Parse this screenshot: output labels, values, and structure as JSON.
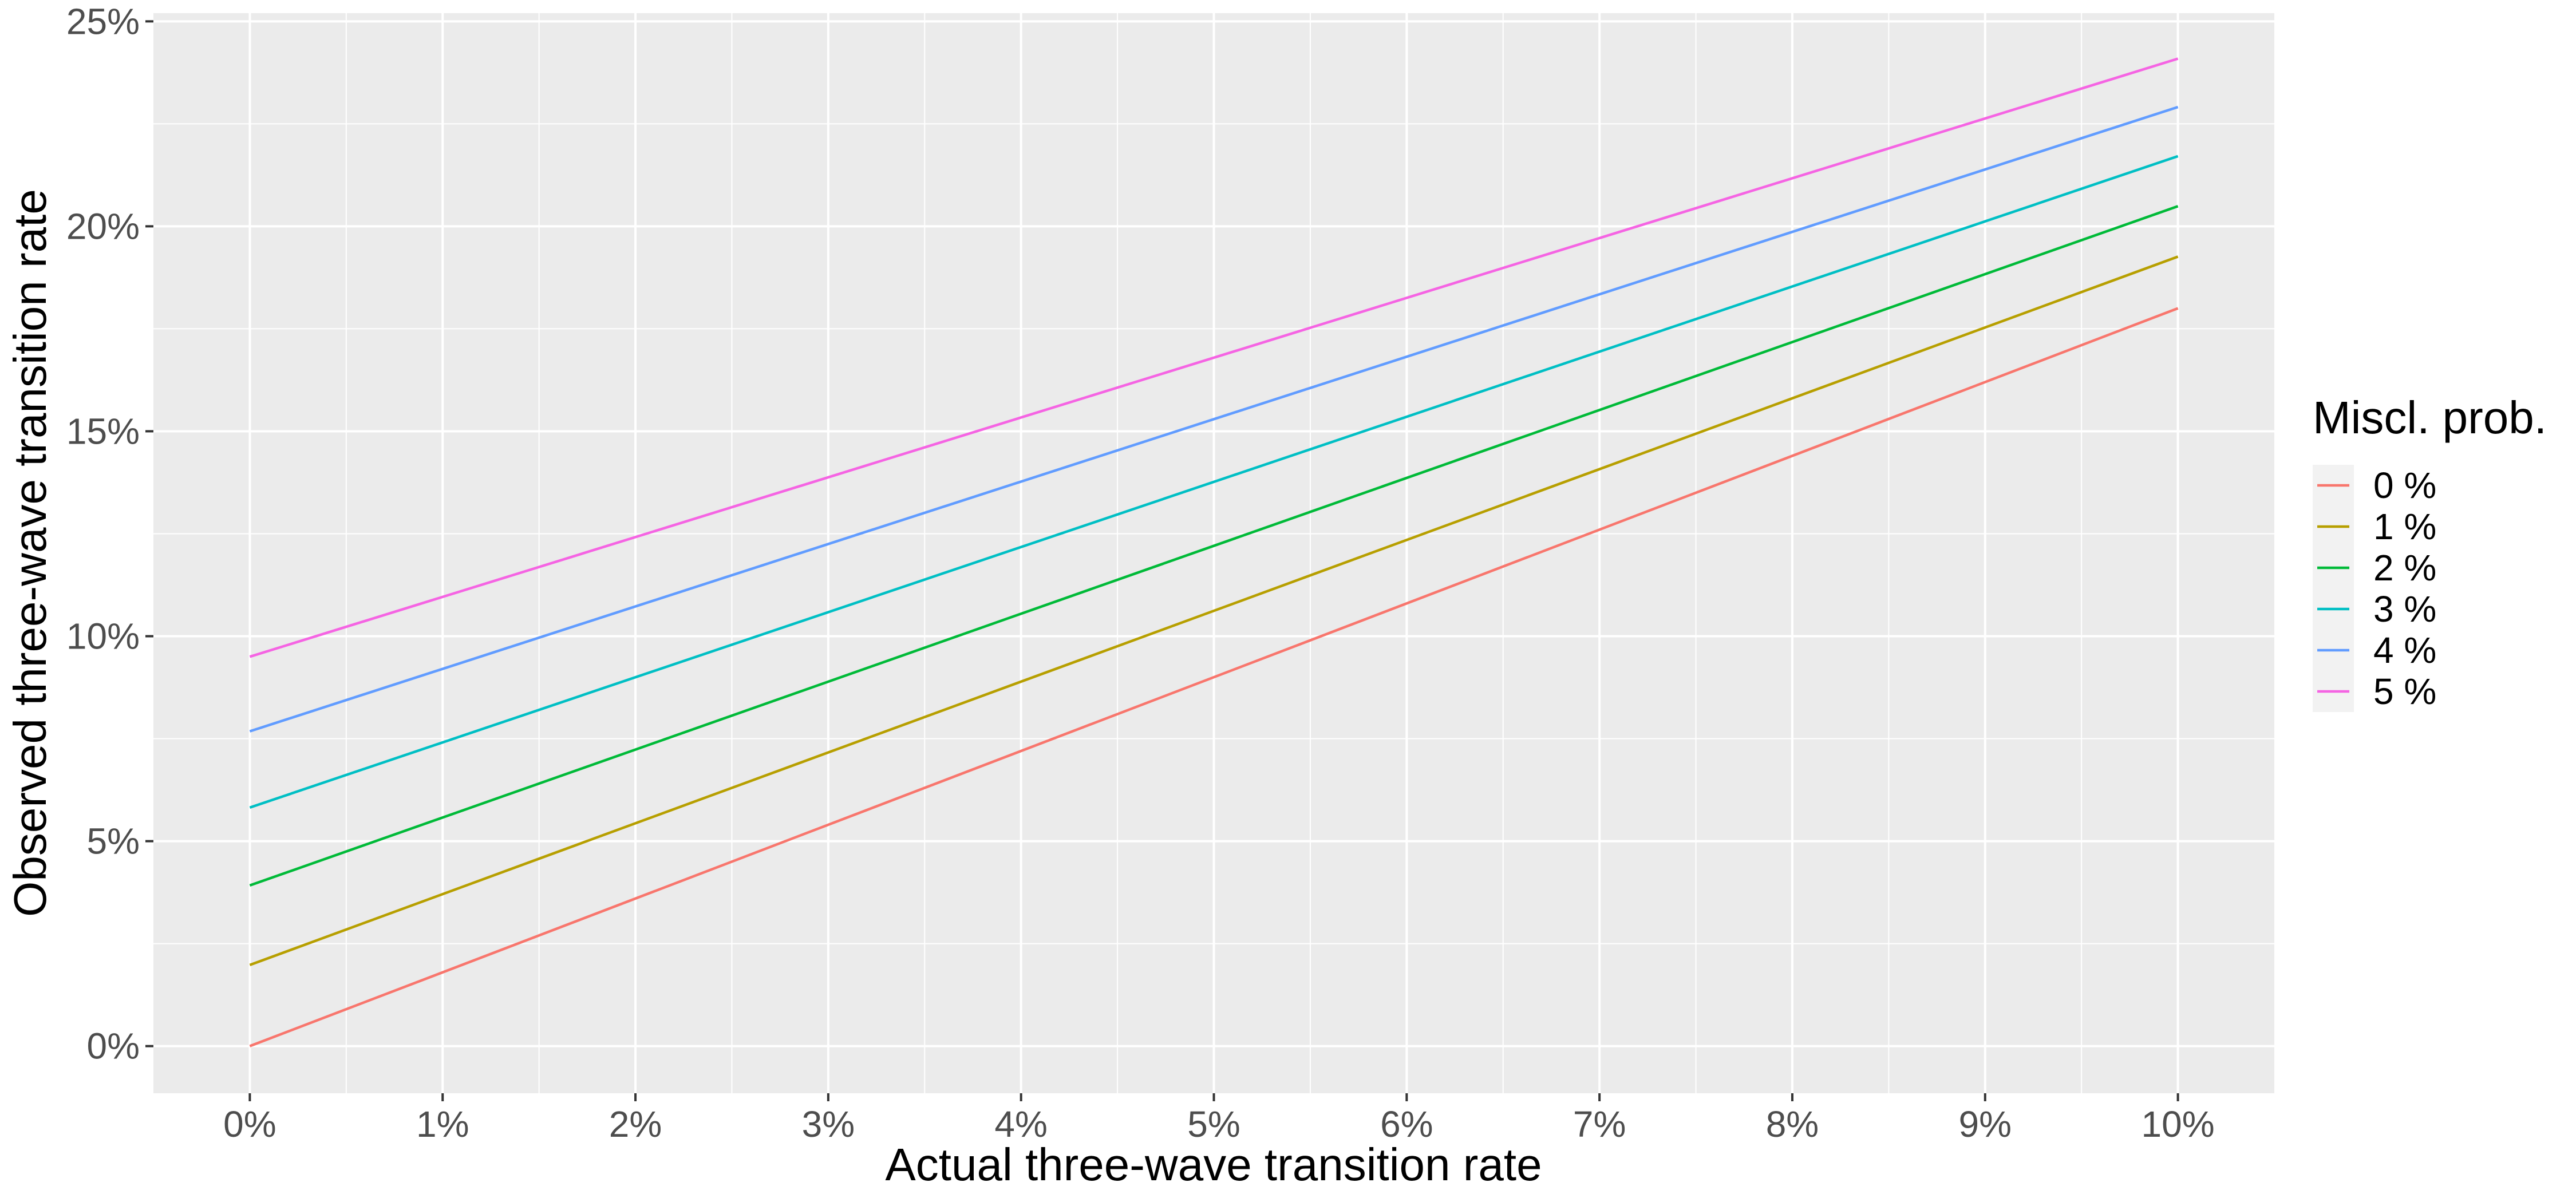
{
  "chart_data": {
    "type": "line",
    "xlabel": "Actual three-wave transition rate",
    "ylabel": "Observed three-wave transition rate",
    "x": [
      0,
      10
    ],
    "xlim": [
      -0.5,
      10.5
    ],
    "ylim": [
      -1.15,
      25.2
    ],
    "xticks": [
      0,
      1,
      2,
      3,
      4,
      5,
      6,
      7,
      8,
      9,
      10
    ],
    "xtick_labels": [
      "0%",
      "1%",
      "2%",
      "3%",
      "4%",
      "5%",
      "6%",
      "7%",
      "8%",
      "9%",
      "10%"
    ],
    "yticks": [
      0,
      5,
      10,
      15,
      20,
      25
    ],
    "ytick_labels": [
      "0%",
      "5%",
      "10%",
      "15%",
      "20%",
      "25%"
    ],
    "grid": true,
    "legend": {
      "title": "Miscl. prob.",
      "position": "right"
    },
    "series": [
      {
        "name": "0 %",
        "color": "#F8766D",
        "values": [
          0.0,
          18.0
        ]
      },
      {
        "name": "1 %",
        "color": "#B79F00",
        "values": [
          1.98,
          19.26
        ]
      },
      {
        "name": "2 %",
        "color": "#00BA38",
        "values": [
          3.92,
          20.49
        ]
      },
      {
        "name": "3 %",
        "color": "#00BFC4",
        "values": [
          5.82,
          21.71
        ]
      },
      {
        "name": "4 %",
        "color": "#619CFF",
        "values": [
          7.68,
          22.91
        ]
      },
      {
        "name": "5 %",
        "color": "#F564E3",
        "values": [
          9.5,
          24.09
        ]
      }
    ]
  }
}
